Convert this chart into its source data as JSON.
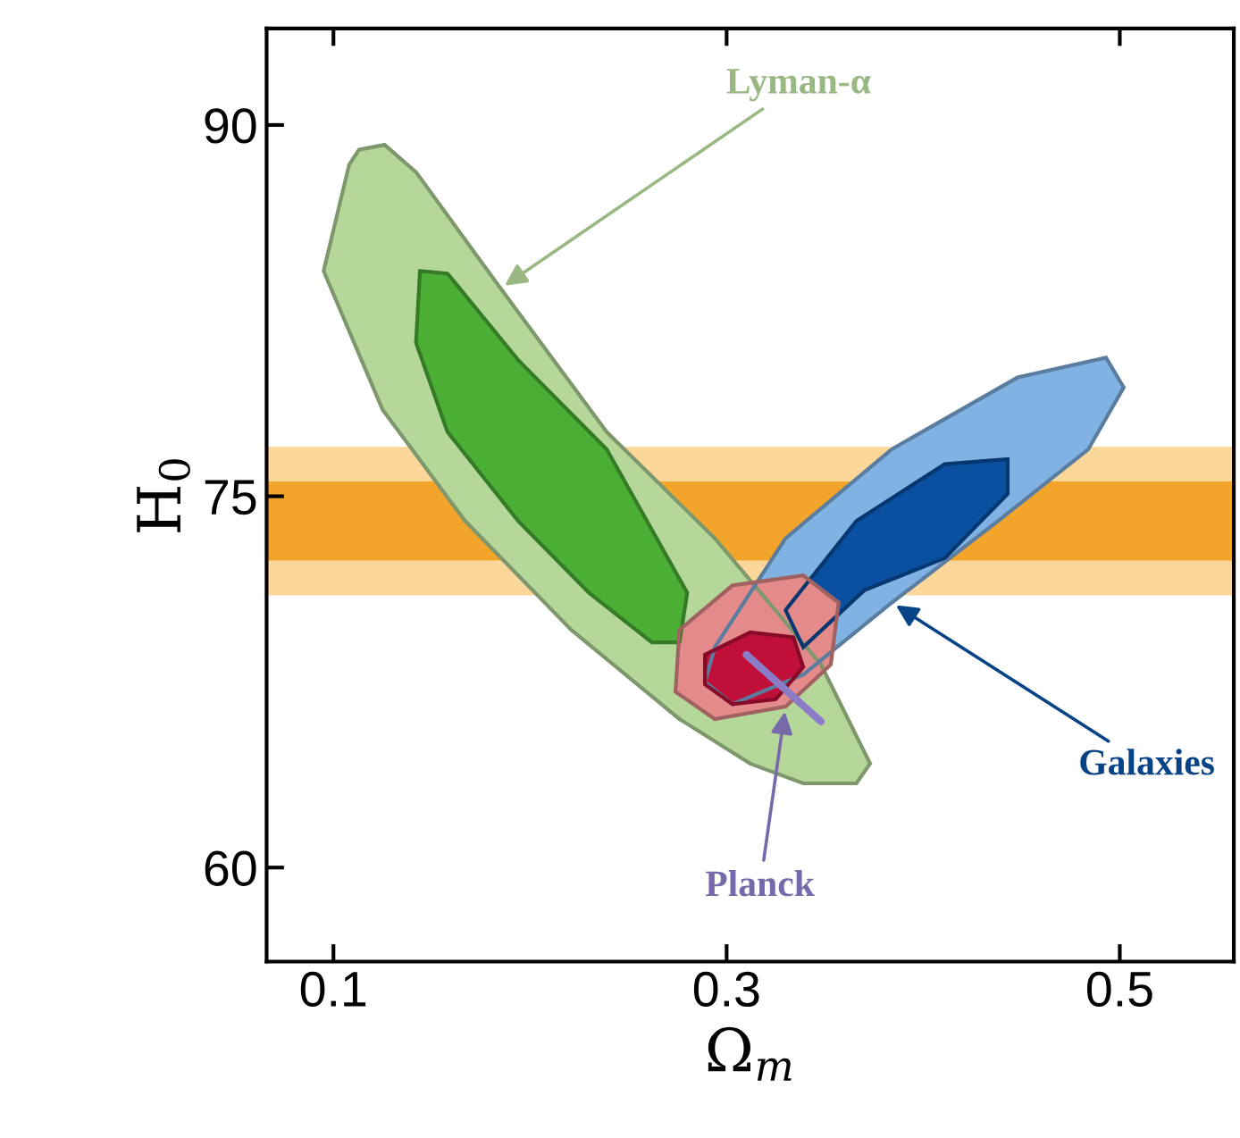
{
  "chart_data": {
    "type": "area",
    "xlabel": "Ω$_{m}$",
    "ylabel": "H$_{0}$",
    "xlim": [
      0.066,
      0.558
    ],
    "ylim": [
      56.2,
      93.9
    ],
    "xticks": [
      0.1,
      0.3,
      0.5
    ],
    "yticks": [
      60,
      75,
      90
    ],
    "grid": false,
    "legend": false,
    "bands": [
      {
        "axis": "y",
        "from": 71,
        "to": 77,
        "color": "#fcd79a"
      },
      {
        "axis": "y",
        "from": 72.4,
        "to": 75.6,
        "color": "#f2a52a"
      }
    ],
    "series": [
      {
        "color": "#b5d89a",
        "x": [
          0.113,
          0.126,
          0.142,
          0.185,
          0.239,
          0.294,
          0.348,
          0.373,
          0.366,
          0.339,
          0.312,
          0.276,
          0.221,
          0.167,
          0.125,
          0.095,
          0.108
        ],
        "values": [
          89.0,
          89.2,
          88.1,
          83.4,
          77.6,
          73.3,
          68.2,
          64.2,
          63.4,
          63.4,
          64.2,
          66.0,
          69.6,
          74.0,
          78.5,
          84.1,
          88.4
        ]
      },
      {
        "color": "#4caf35",
        "x": [
          0.144,
          0.158,
          0.194,
          0.239,
          0.28,
          0.276,
          0.262,
          0.23,
          0.194,
          0.158,
          0.142
        ],
        "values": [
          84.1,
          84.0,
          80.5,
          76.9,
          71.1,
          69.1,
          69.1,
          71.1,
          74.0,
          77.6,
          81.2
        ]
      },
      {
        "color": "#80b2e3",
        "x": [
          0.294,
          0.33,
          0.384,
          0.448,
          0.493,
          0.502,
          0.484,
          0.438,
          0.384,
          0.339,
          0.303,
          0.289
        ],
        "values": [
          68.9,
          73.3,
          76.9,
          79.8,
          80.6,
          79.4,
          76.9,
          74.0,
          70.7,
          67.8,
          66.6,
          67.5
        ]
      },
      {
        "color": "#0a4fa0",
        "x": [
          0.33,
          0.366,
          0.411,
          0.443,
          0.443,
          0.411,
          0.37,
          0.339
        ],
        "values": [
          70.4,
          74.0,
          76.3,
          76.5,
          75.1,
          72.5,
          71.2,
          68.9
        ]
      },
      {
        "color": "#e48a8a",
        "x": [
          0.276,
          0.303,
          0.339,
          0.357,
          0.353,
          0.33,
          0.294,
          0.274
        ],
        "values": [
          69.6,
          71.4,
          71.8,
          70.7,
          68.2,
          66.5,
          66.0,
          67.1
        ]
      },
      {
        "color": "#c0103a",
        "x": [
          0.289,
          0.312,
          0.334,
          0.339,
          0.325,
          0.303,
          0.289
        ],
        "values": [
          68.6,
          69.5,
          69.3,
          68.1,
          66.8,
          66.6,
          67.4
        ]
      },
      {
        "type": "line",
        "color": "#8c7cc8",
        "x": [
          0.31,
          0.348
        ],
        "values": [
          68.6,
          65.9
        ]
      }
    ],
    "annotations": [
      {
        "text": "Lyman-α",
        "x": 0.185,
        "y": 83.4
      },
      {
        "text": "Galaxies",
        "x": 0.384,
        "y": 70.7
      },
      {
        "text": "Planck",
        "x": 0.33,
        "y": 66.5
      }
    ]
  }
}
